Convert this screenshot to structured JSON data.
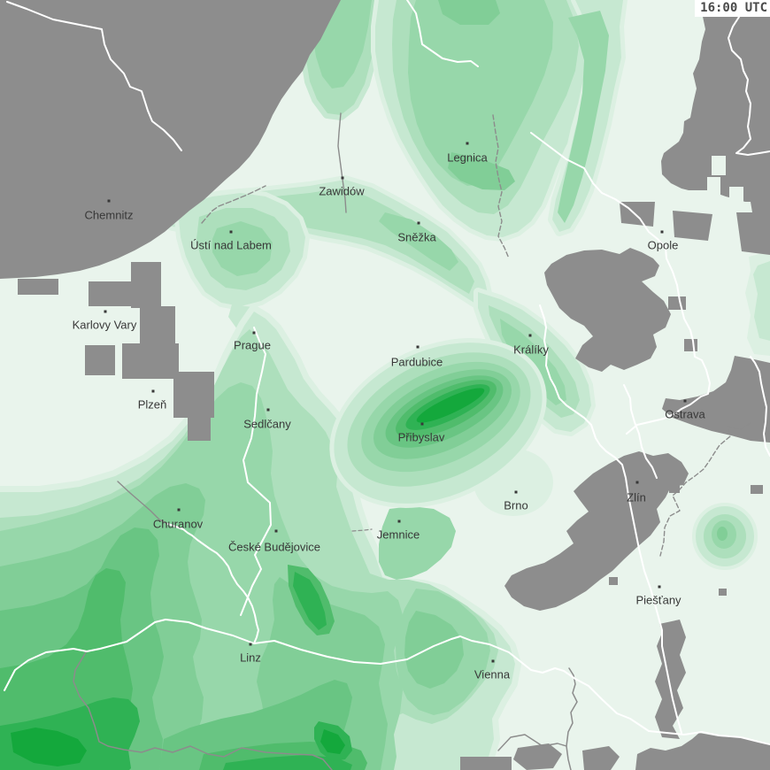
{
  "timestamp": "16:00 UTC",
  "map_type": "precipitation-intensity-map",
  "colors": {
    "background": "#e9f4ec",
    "L1": "#dcf0e2",
    "L2": "#c6e8d1",
    "L3": "#addfbc",
    "L4": "#97d7aa",
    "L5": "#81ce97",
    "L6": "#69c583",
    "L7": "#50bc6c",
    "L8": "#2fb254",
    "L9": "#14a83c",
    "gray_area": "#8d8d8d",
    "border_white": "#ffffff",
    "river_gray": "#8c8c8c",
    "label_text": "#383838",
    "timestamp_text": "#4a4a4a",
    "timestamp_bg": "#ffffff"
  },
  "cities": [
    {
      "name": "Chemnitz",
      "dot": [
        123,
        227
      ],
      "label": [
        123,
        243
      ]
    },
    {
      "name": "Ústí nad Labem",
      "dot": [
        261,
        262
      ],
      "label": [
        261,
        277
      ]
    },
    {
      "name": "Karlovy Vary",
      "dot": [
        119,
        352
      ],
      "label": [
        118,
        367
      ]
    },
    {
      "name": "Prague",
      "dot": [
        287,
        376
      ],
      "label": [
        285,
        390
      ]
    },
    {
      "name": "Plzeň",
      "dot": [
        173,
        442
      ],
      "label": [
        172,
        457
      ]
    },
    {
      "name": "Sedlčany",
      "dot": [
        303,
        463
      ],
      "label": [
        302,
        479
      ]
    },
    {
      "name": "Churanov",
      "dot": [
        202,
        576
      ],
      "label": [
        201,
        592
      ]
    },
    {
      "name": "České Budějovice",
      "dot": [
        312,
        600
      ],
      "label": [
        310,
        618
      ]
    },
    {
      "name": "Linz",
      "dot": [
        283,
        728
      ],
      "label": [
        283,
        743
      ]
    },
    {
      "name": "Zawidów",
      "dot": [
        387,
        201
      ],
      "label": [
        386,
        216
      ]
    },
    {
      "name": "Sněžka",
      "dot": [
        473,
        252
      ],
      "label": [
        471,
        268
      ]
    },
    {
      "name": "Legnica",
      "dot": [
        528,
        162
      ],
      "label": [
        528,
        178
      ]
    },
    {
      "name": "Pardubice",
      "dot": [
        472,
        392
      ],
      "label": [
        471,
        409
      ]
    },
    {
      "name": "Přibyslav",
      "dot": [
        477,
        479
      ],
      "label": [
        476,
        494
      ]
    },
    {
      "name": "Jemnice",
      "dot": [
        451,
        589
      ],
      "label": [
        450,
        604
      ]
    },
    {
      "name": "Brno",
      "dot": [
        583,
        556
      ],
      "label": [
        583,
        571
      ]
    },
    {
      "name": "Vienna",
      "dot": [
        557,
        747
      ],
      "label": [
        556,
        762
      ]
    },
    {
      "name": "Králíky",
      "dot": [
        599,
        379
      ],
      "label": [
        600,
        395
      ]
    },
    {
      "name": "Opole",
      "dot": [
        748,
        262
      ],
      "label": [
        749,
        277
      ]
    },
    {
      "name": "Ostrava",
      "dot": [
        774,
        453
      ],
      "label": [
        774,
        468
      ]
    },
    {
      "name": "Zlín",
      "dot": [
        720,
        545
      ],
      "label": [
        719,
        562
      ]
    },
    {
      "name": "Piešťany",
      "dot": [
        745,
        663
      ],
      "label": [
        744,
        678
      ]
    }
  ]
}
